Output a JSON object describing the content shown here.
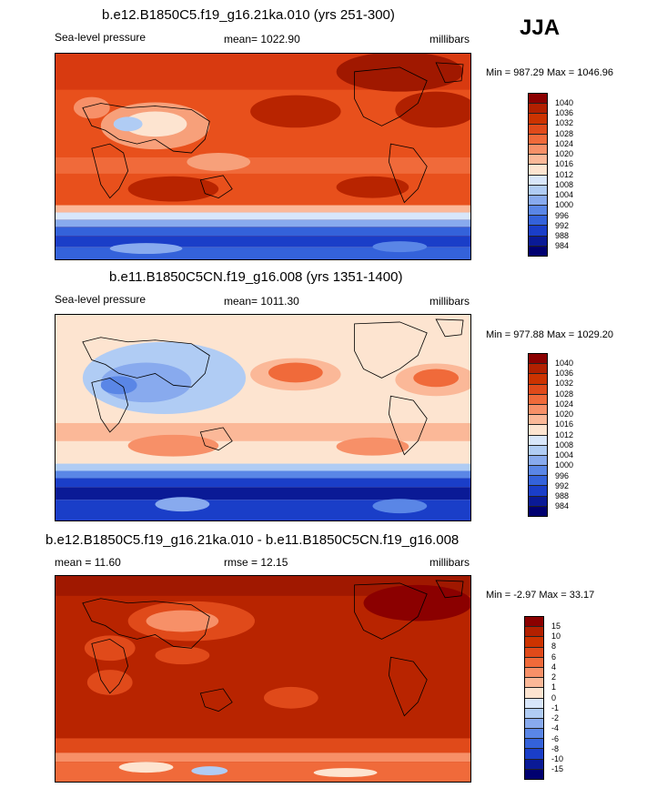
{
  "season": "JJA",
  "panels": [
    {
      "title": "b.e12.B1850C5.f19_g16.21ka.010 (yrs 251-300)",
      "left_label": "Sea-level pressure",
      "center_label": "mean= 1022.90",
      "right_label": "millibars",
      "minmax": "Min = 987.29 Max = 1046.96",
      "colorbar_labels": [
        "1040",
        "1036",
        "1032",
        "1028",
        "1024",
        "1020",
        "1016",
        "1012",
        "1008",
        "1004",
        "1000",
        "996",
        "992",
        "988",
        "984"
      ],
      "colors": [
        "#8b0000",
        "#b22000",
        "#cc3300",
        "#e04a1a",
        "#f06a3a",
        "#f79068",
        "#fbb898",
        "#fde4d0",
        "#d8e6fa",
        "#b0ccf4",
        "#88aaee",
        "#5a86e6",
        "#3462da",
        "#1a3ec8",
        "#0a1a96",
        "#000070"
      ]
    },
    {
      "title": "b.e11.B1850C5CN.f19_g16.008 (yrs 1351-1400)",
      "left_label": "Sea-level pressure",
      "center_label": "mean= 1011.30",
      "right_label": "millibars",
      "minmax": "Min = 977.88 Max = 1029.20",
      "colorbar_labels": [
        "1040",
        "1036",
        "1032",
        "1028",
        "1024",
        "1020",
        "1016",
        "1012",
        "1008",
        "1004",
        "1000",
        "996",
        "992",
        "988",
        "984"
      ],
      "colors": [
        "#8b0000",
        "#b22000",
        "#cc3300",
        "#e04a1a",
        "#f06a3a",
        "#f79068",
        "#fbb898",
        "#fde4d0",
        "#d8e6fa",
        "#b0ccf4",
        "#88aaee",
        "#5a86e6",
        "#3462da",
        "#1a3ec8",
        "#0a1a96",
        "#000070"
      ]
    },
    {
      "title": "b.e12.B1850C5.f19_g16.21ka.010 - b.e11.B1850C5CN.f19_g16.008",
      "left_label": "mean =  11.60",
      "center_label": "rmse =  12.15",
      "right_label": "millibars",
      "minmax": "Min =  -2.97 Max =  33.17",
      "colorbar_labels": [
        "15",
        "10",
        "8",
        "6",
        "4",
        "2",
        "1",
        "0",
        "-1",
        "-2",
        "-4",
        "-6",
        "-8",
        "-10",
        "-15"
      ],
      "colors": [
        "#8b0000",
        "#b22000",
        "#cc3300",
        "#e04a1a",
        "#f06a3a",
        "#f79068",
        "#fbb898",
        "#fde4d0",
        "#d8e6fa",
        "#b0ccf4",
        "#88aaee",
        "#5a86e6",
        "#3462da",
        "#1a3ec8",
        "#0a1a96",
        "#000070"
      ]
    }
  ]
}
